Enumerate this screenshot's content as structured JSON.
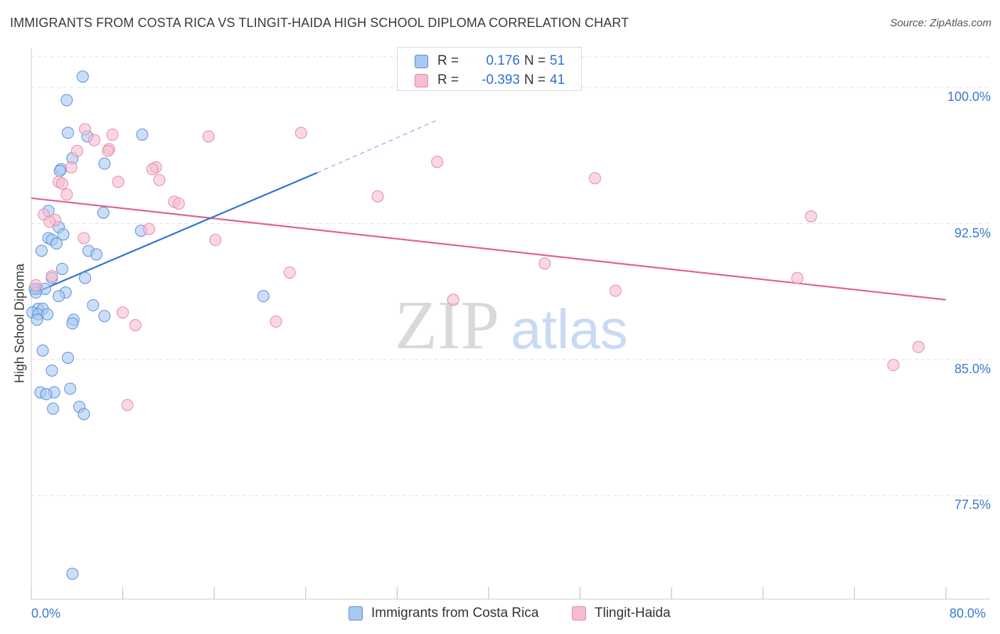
{
  "title": "IMMIGRANTS FROM COSTA RICA VS TLINGIT-HAIDA HIGH SCHOOL DIPLOMA CORRELATION CHART",
  "source": "Source: ZipAtlas.com",
  "watermark": {
    "zip": "ZIP",
    "atlas": "atlas"
  },
  "legend": {
    "r_label": "R =",
    "n_label": "N =",
    "rows": [
      {
        "r": "0.176",
        "n": "51"
      },
      {
        "r": "-0.393",
        "n": "41"
      }
    ]
  },
  "colors": {
    "blue_fill": "#a9c8f2",
    "blue_stroke": "#5b8fd8",
    "blue_line": "#2f72d0",
    "pink_fill": "#f6bcd0",
    "pink_stroke": "#e48aa8",
    "pink_line": "#e0628e"
  },
  "chart_data": {
    "type": "scatter",
    "title": "IMMIGRANTS FROM COSTA RICA VS TLINGIT-HAIDA HIGH SCHOOL DIPLOMA CORRELATION CHART",
    "xlabel": "",
    "ylabel": "High School Diploma",
    "xlim": [
      0,
      80
    ],
    "ylim": [
      71.8,
      102.0
    ],
    "x_tick_labels": [
      {
        "value": 0,
        "label": "0.0%"
      },
      {
        "value": 80,
        "label": "80.0%"
      }
    ],
    "y_ticks": [
      {
        "value": 100,
        "label": "100.0%"
      },
      {
        "value": 92.5,
        "label": "92.5%"
      },
      {
        "value": 85,
        "label": "85.0%"
      },
      {
        "value": 77.5,
        "label": "77.5%"
      }
    ],
    "grid": true,
    "series": [
      {
        "name": "Immigrants from Costa Rica",
        "color": "blue",
        "points": [
          [
            4.5,
            100.6
          ],
          [
            3.1,
            99.3
          ],
          [
            3.2,
            97.5
          ],
          [
            9.7,
            97.4
          ],
          [
            4.9,
            97.3
          ],
          [
            3.6,
            96.1
          ],
          [
            6.4,
            95.8
          ],
          [
            2.6,
            95.5
          ],
          [
            2.5,
            95.4
          ],
          [
            1.5,
            93.2
          ],
          [
            6.3,
            93.1
          ],
          [
            2.4,
            92.3
          ],
          [
            9.6,
            92.1
          ],
          [
            2.8,
            91.9
          ],
          [
            1.5,
            91.7
          ],
          [
            1.8,
            91.6
          ],
          [
            2.2,
            91.4
          ],
          [
            0.9,
            91.0
          ],
          [
            5.0,
            91.0
          ],
          [
            5.7,
            90.8
          ],
          [
            2.7,
            90.0
          ],
          [
            1.8,
            89.5
          ],
          [
            4.7,
            89.5
          ],
          [
            0.5,
            88.9
          ],
          [
            0.3,
            88.9
          ],
          [
            1.2,
            88.9
          ],
          [
            3.0,
            88.7
          ],
          [
            2.4,
            88.5
          ],
          [
            20.3,
            88.5
          ],
          [
            5.4,
            88.0
          ],
          [
            0.6,
            87.8
          ],
          [
            1.0,
            87.8
          ],
          [
            0.1,
            87.6
          ],
          [
            0.6,
            87.5
          ],
          [
            1.4,
            87.5
          ],
          [
            6.4,
            87.4
          ],
          [
            3.7,
            87.2
          ],
          [
            0.5,
            87.2
          ],
          [
            3.6,
            87.0
          ],
          [
            1.0,
            85.5
          ],
          [
            3.2,
            85.1
          ],
          [
            1.8,
            84.4
          ],
          [
            3.4,
            83.4
          ],
          [
            0.8,
            83.2
          ],
          [
            2.0,
            83.2
          ],
          [
            1.3,
            83.1
          ],
          [
            1.9,
            82.3
          ],
          [
            4.2,
            82.4
          ],
          [
            4.6,
            82.0
          ],
          [
            3.6,
            73.2
          ],
          [
            0.4,
            88.7
          ]
        ]
      },
      {
        "name": "Tlingit-Haida",
        "color": "pink",
        "points": [
          [
            4.7,
            97.7
          ],
          [
            23.6,
            97.5
          ],
          [
            7.1,
            97.4
          ],
          [
            15.5,
            97.3
          ],
          [
            5.5,
            97.1
          ],
          [
            4.0,
            96.5
          ],
          [
            6.8,
            96.6
          ],
          [
            6.7,
            96.5
          ],
          [
            35.5,
            95.9
          ],
          [
            10.9,
            95.6
          ],
          [
            10.6,
            95.5
          ],
          [
            3.5,
            95.6
          ],
          [
            49.3,
            95.0
          ],
          [
            11.2,
            94.9
          ],
          [
            2.4,
            94.8
          ],
          [
            7.6,
            94.8
          ],
          [
            2.7,
            94.7
          ],
          [
            3.1,
            94.1
          ],
          [
            30.3,
            94.0
          ],
          [
            12.5,
            93.7
          ],
          [
            12.9,
            93.6
          ],
          [
            1.1,
            93.0
          ],
          [
            2.1,
            92.7
          ],
          [
            68.2,
            92.9
          ],
          [
            1.6,
            92.6
          ],
          [
            10.3,
            92.2
          ],
          [
            4.6,
            91.7
          ],
          [
            16.1,
            91.6
          ],
          [
            44.9,
            90.3
          ],
          [
            22.6,
            89.8
          ],
          [
            1.8,
            89.6
          ],
          [
            67.0,
            89.5
          ],
          [
            51.1,
            88.8
          ],
          [
            0.4,
            89.1
          ],
          [
            36.9,
            88.3
          ],
          [
            8.0,
            87.6
          ],
          [
            21.4,
            87.1
          ],
          [
            9.1,
            86.9
          ],
          [
            77.6,
            85.7
          ],
          [
            75.4,
            84.7
          ],
          [
            8.4,
            82.5
          ]
        ]
      }
    ],
    "trend_lines": [
      {
        "series": "Immigrants from Costa Rica",
        "solid": [
          [
            0,
            88.6
          ],
          [
            25,
            95.3
          ]
        ],
        "dashed": [
          [
            25,
            95.3
          ],
          [
            35.5,
            98.2
          ]
        ]
      },
      {
        "series": "Tlingit-Haida",
        "solid": [
          [
            0,
            93.9
          ],
          [
            80,
            88.3
          ]
        ]
      }
    ]
  }
}
